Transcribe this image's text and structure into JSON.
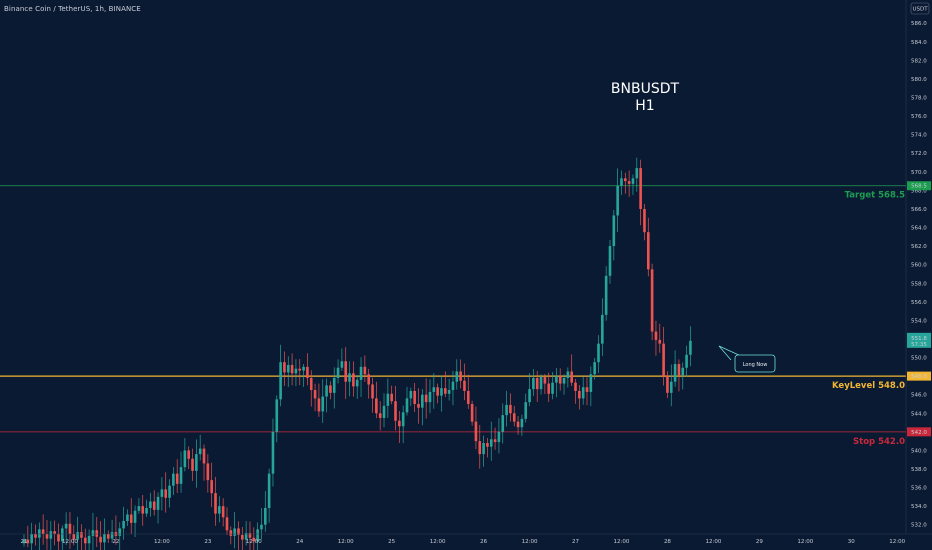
{
  "symbol_label": "Binance Coin / TetherUS, 1h, BINANCE",
  "currency_label": "USDT",
  "chart_data": {
    "type": "candlestick",
    "title_line1": "BNBUSDT",
    "title_line2": "H1",
    "ylim": [
      531.0,
      588.5
    ],
    "y_ticks": [
      "532.0",
      "534.0",
      "536.0",
      "538.0",
      "540.0",
      "542.0",
      "544.0",
      "546.0",
      "548.0",
      "550.0",
      "552.0",
      "554.0",
      "556.0",
      "558.0",
      "560.0",
      "562.0",
      "564.0",
      "566.0",
      "568.0",
      "570.0",
      "572.0",
      "574.0",
      "576.0",
      "578.0",
      "580.0",
      "582.0",
      "584.0",
      "586.0"
    ],
    "x_ticks": [
      {
        "label": "21",
        "i": 0
      },
      {
        "label": "12:00",
        "i": 12
      },
      {
        "label": "22",
        "i": 24
      },
      {
        "label": "12:00",
        "i": 36
      },
      {
        "label": "23",
        "i": 48
      },
      {
        "label": "12:00",
        "i": 60
      },
      {
        "label": "24",
        "i": 72
      },
      {
        "label": "12:00",
        "i": 84
      },
      {
        "label": "25",
        "i": 96
      },
      {
        "label": "12:00",
        "i": 108
      },
      {
        "label": "26",
        "i": 120
      },
      {
        "label": "12:00",
        "i": 132
      },
      {
        "label": "27",
        "i": 144
      },
      {
        "label": "12:00",
        "i": 156
      },
      {
        "label": "28",
        "i": 168
      },
      {
        "label": "12:00",
        "i": 180
      },
      {
        "label": "29",
        "i": 192
      },
      {
        "label": "12:00",
        "i": 204
      },
      {
        "label": "30",
        "i": 216
      },
      {
        "label": "12:00",
        "i": 228
      }
    ],
    "candles_close": [
      530.4,
      530.0,
      531.0,
      530.6,
      531.5,
      531.0,
      530.5,
      531.3,
      531.0,
      530.2,
      531.6,
      532.1,
      531.0,
      530.4,
      531.2,
      530.6,
      530.0,
      530.8,
      531.4,
      530.7,
      530.1,
      531.0,
      530.5,
      531.2,
      530.8,
      531.6,
      532.4,
      533.1,
      532.2,
      533.5,
      534.0,
      533.2,
      533.8,
      534.5,
      533.6,
      535.0,
      535.8,
      534.9,
      536.2,
      537.5,
      536.4,
      538.2,
      540.0,
      539.1,
      537.8,
      539.6,
      540.2,
      538.6,
      536.8,
      535.4,
      533.2,
      534.0,
      532.8,
      531.4,
      530.8,
      531.6,
      530.9,
      530.4,
      531.1,
      530.6,
      530.2,
      531.5,
      532.0,
      533.8,
      537.5,
      542.0,
      545.5,
      549.5,
      548.4,
      549.2,
      548.3,
      548.8,
      548.6,
      549.0,
      547.8,
      546.5,
      545.6,
      544.2,
      545.8,
      547.0,
      546.2,
      547.8,
      548.9,
      549.6,
      547.4,
      548.3,
      546.9,
      547.6,
      549.0,
      548.2,
      547.1,
      545.6,
      544.0,
      543.5,
      544.8,
      546.1,
      545.3,
      543.2,
      542.6,
      544.1,
      545.6,
      546.4,
      545.0,
      544.6,
      546.0,
      545.2,
      546.3,
      546.8,
      545.9,
      546.7,
      546.1,
      546.5,
      547.4,
      548.5,
      547.5,
      546.4,
      545.0,
      543.1,
      541.0,
      539.6,
      540.8,
      540.4,
      541.2,
      540.9,
      542.0,
      543.8,
      544.9,
      544.0,
      543.1,
      542.5,
      543.4,
      545.2,
      546.6,
      547.8,
      546.6,
      547.9,
      547.2,
      546.1,
      547.3,
      548.0,
      547.2,
      547.8,
      548.5,
      547.3,
      546.4,
      545.6,
      546.8,
      546.3,
      548.2,
      549.5,
      551.5,
      554.6,
      558.8,
      562.0,
      565.3,
      568.5,
      569.3,
      569.0,
      568.7,
      569.3,
      570.4,
      566.0,
      563.5,
      559.5,
      552.8,
      551.9,
      551.5,
      548.0,
      546.2,
      547.4,
      549.3,
      548.1,
      548.9,
      550.3,
      551.8
    ],
    "levels": [
      {
        "label": "Target 568.5",
        "price_tag": "568.5",
        "value": 568.5,
        "color": "#1c9e4f"
      },
      {
        "label": "KeyLevel 548.0",
        "price_tag": "548.0",
        "value": 548.0,
        "color": "#f2b632"
      },
      {
        "label": "Stop 542.0",
        "price_tag": "542.0",
        "value": 542.0,
        "color": "#c9283a"
      }
    ],
    "current_price_tag": [
      "551.8",
      "57:35"
    ],
    "annotation": "Long Now",
    "grid": false
  },
  "colors": {
    "up": "#26a69a",
    "down": "#ef5350",
    "background": "#0b1a33",
    "axis": "#c8cdd6",
    "callout": "#6fe0d7"
  }
}
